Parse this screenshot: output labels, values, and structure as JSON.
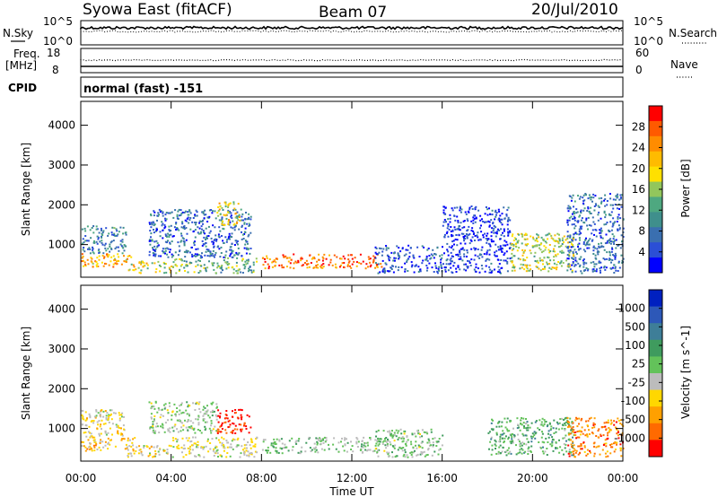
{
  "header": {
    "station": "Syowa East (fitACF)",
    "beam": "Beam 07",
    "date": "20/Jul/2010"
  },
  "top_panels": {
    "nsky_label": "N.Sky",
    "nsky_ticks": [
      "10^5",
      "10^0"
    ],
    "nsearch_label": "N.Search",
    "nsearch_ticks": [
      "10^5",
      "10^0"
    ],
    "freq_label_1": "Freq.",
    "freq_label_2": "[MHz]",
    "freq_ticks": [
      "18",
      "8"
    ],
    "nave_label": "Nave",
    "nave_ticks": [
      "60",
      "0"
    ],
    "cpid_label": "CPID",
    "cpid_value": "normal (fast) -151"
  },
  "chart_data": [
    {
      "type": "heatmap",
      "name": "power",
      "ylabel": "Slant Range [km]",
      "xlabel": "Time UT",
      "xlim_hours": [
        0,
        24
      ],
      "ylim_km": [
        180,
        4600
      ],
      "x_tick_labels": [
        "00:00",
        "04:00",
        "08:00",
        "12:00",
        "16:00",
        "20:00",
        "00:00"
      ],
      "y_tick_labels": [
        "1000",
        "2000",
        "3000",
        "4000"
      ],
      "colorbar": {
        "label": "Power [dB]",
        "tick_labels": [
          "28",
          "24",
          "20",
          "16",
          "12",
          "8",
          "4"
        ],
        "colors": [
          "#ff0000",
          "#ff5a00",
          "#ff8c00",
          "#ffbb00",
          "#ffe000",
          "#92c65c",
          "#4ea880",
          "#3f8f8c",
          "#3a6fb0",
          "#2b4fd6",
          "#0000ff"
        ]
      },
      "regions": [
        {
          "t": [
            0.0,
            2.4
          ],
          "km": [
            450,
            800
          ],
          "value": 22
        },
        {
          "t": [
            0.0,
            2.0
          ],
          "km": [
            800,
            1500
          ],
          "value": 10
        },
        {
          "t": [
            2.0,
            4.0
          ],
          "km": [
            300,
            600
          ],
          "value": 18
        },
        {
          "t": [
            4.0,
            7.8
          ],
          "km": [
            300,
            700
          ],
          "value": 14
        },
        {
          "t": [
            3.0,
            7.5
          ],
          "km": [
            700,
            1900
          ],
          "value": 8
        },
        {
          "t": [
            6.0,
            7.2
          ],
          "km": [
            1500,
            2100
          ],
          "value": 18
        },
        {
          "t": [
            8.0,
            13.3
          ],
          "km": [
            420,
            780
          ],
          "value": 25
        },
        {
          "t": [
            13.0,
            16.0
          ],
          "km": [
            300,
            1000
          ],
          "value": 6
        },
        {
          "t": [
            16.0,
            19.0
          ],
          "km": [
            300,
            2000
          ],
          "value": 5
        },
        {
          "t": [
            19.0,
            21.8
          ],
          "km": [
            350,
            1300
          ],
          "value": 17
        },
        {
          "t": [
            21.5,
            24.0
          ],
          "km": [
            300,
            2300
          ],
          "value": 8
        }
      ]
    },
    {
      "type": "heatmap",
      "name": "velocity",
      "ylabel": "Slant Range [km]",
      "xlabel": "Time UT",
      "xlim_hours": [
        0,
        24
      ],
      "ylim_km": [
        180,
        4600
      ],
      "x_tick_labels": [
        "00:00",
        "04:00",
        "08:00",
        "12:00",
        "16:00",
        "20:00",
        "00:00"
      ],
      "y_tick_labels": [
        "1000",
        "2000",
        "3000",
        "4000"
      ],
      "colorbar": {
        "label": "Velocity [m s^-1]",
        "tick_labels": [
          "1000",
          "500",
          "100",
          "25",
          "-25",
          "-100",
          "-500",
          "-1000"
        ],
        "colors": [
          "#0020c0",
          "#2d58b8",
          "#3e7e98",
          "#3f9b5e",
          "#63c25a",
          "#bcbcbc",
          "#ffd700",
          "#ffa000",
          "#ff6a00",
          "#ff0000"
        ]
      },
      "regions": [
        {
          "t": [
            0.0,
            2.4
          ],
          "km": [
            450,
            800
          ],
          "value": -400
        },
        {
          "t": [
            0.0,
            2.0
          ],
          "km": [
            800,
            1500
          ],
          "value": -200
        },
        {
          "t": [
            2.0,
            4.0
          ],
          "km": [
            300,
            600
          ],
          "value": -200
        },
        {
          "t": [
            4.0,
            7.8
          ],
          "km": [
            300,
            800
          ],
          "value": -150
        },
        {
          "t": [
            3.0,
            6.0
          ],
          "km": [
            900,
            1700
          ],
          "value": 0
        },
        {
          "t": [
            6.0,
            7.5
          ],
          "km": [
            900,
            1500
          ],
          "value": -900
        },
        {
          "t": [
            8.0,
            13.3
          ],
          "km": [
            400,
            800
          ],
          "value": 60
        },
        {
          "t": [
            13.0,
            16.0
          ],
          "km": [
            300,
            1000
          ],
          "value": 40
        },
        {
          "t": [
            18.0,
            21.8
          ],
          "km": [
            350,
            1300
          ],
          "value": 200
        },
        {
          "t": [
            21.5,
            24.0
          ],
          "km": [
            300,
            1300
          ],
          "value": -600
        }
      ]
    }
  ]
}
